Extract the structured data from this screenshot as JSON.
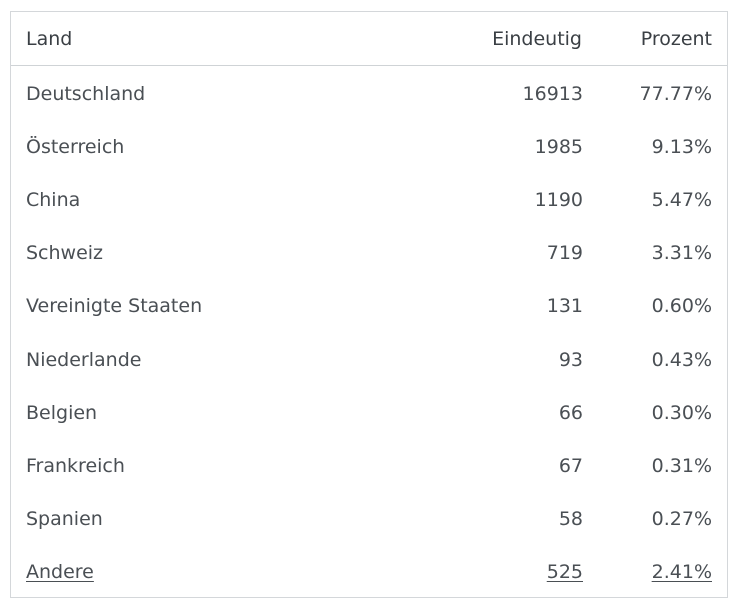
{
  "table": {
    "headers": {
      "land": "Land",
      "eindeutig": "Eindeutig",
      "prozent": "Prozent"
    },
    "rows": [
      {
        "land": "Deutschland",
        "eindeutig": "16913",
        "prozent": "77.77%"
      },
      {
        "land": "Österreich",
        "eindeutig": "1985",
        "prozent": "9.13%"
      },
      {
        "land": "China",
        "eindeutig": "1190",
        "prozent": "5.47%"
      },
      {
        "land": "Schweiz",
        "eindeutig": "719",
        "prozent": "3.31%"
      },
      {
        "land": "Vereinigte Staaten",
        "eindeutig": "131",
        "prozent": "0.60%"
      },
      {
        "land": "Niederlande",
        "eindeutig": "93",
        "prozent": "0.43%"
      },
      {
        "land": "Belgien",
        "eindeutig": "66",
        "prozent": "0.30%"
      },
      {
        "land": "Frankreich",
        "eindeutig": "67",
        "prozent": "0.31%"
      },
      {
        "land": "Spanien",
        "eindeutig": "58",
        "prozent": "0.27%"
      }
    ],
    "other": {
      "land": "Andere",
      "eindeutig": "525",
      "prozent": "2.41%"
    }
  }
}
